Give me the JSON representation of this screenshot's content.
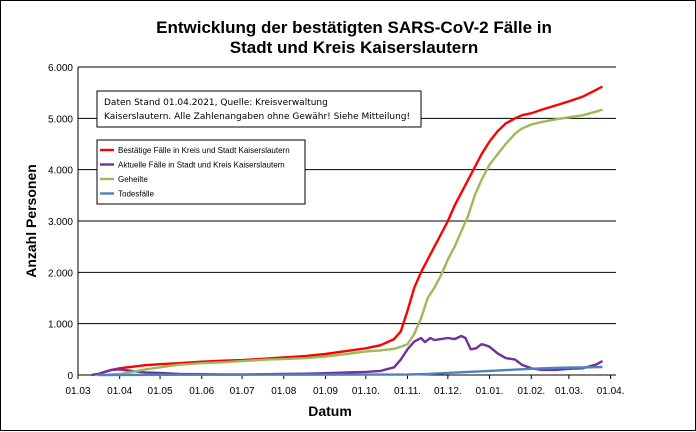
{
  "chart_data": {
    "type": "line",
    "title_line1": "Entwicklung der bestätigten SARS-CoV-2 Fälle in",
    "title_line2": "Stadt und Kreis Kaiserslautern",
    "xlabel": "Datum",
    "ylabel": "Anzahl Personen",
    "ylim": [
      0,
      6000
    ],
    "yticks": [
      {
        "value": 0,
        "label": "0"
      },
      {
        "value": 1000,
        "label": "1.000"
      },
      {
        "value": 2000,
        "label": "2.000"
      },
      {
        "value": 3000,
        "label": "3.000"
      },
      {
        "value": 4000,
        "label": "4.000"
      },
      {
        "value": 5000,
        "label": "5.000"
      },
      {
        "value": 6000,
        "label": "6.000"
      }
    ],
    "xlim": [
      0,
      394
    ],
    "xticks": [
      {
        "value": 0,
        "label": "01.03"
      },
      {
        "value": 31,
        "label": "01.04"
      },
      {
        "value": 61,
        "label": "01.05"
      },
      {
        "value": 92,
        "label": "01.06"
      },
      {
        "value": 122,
        "label": "01.07"
      },
      {
        "value": 153,
        "label": "01.08"
      },
      {
        "value": 184,
        "label": "01.09"
      },
      {
        "value": 214,
        "label": "01.10."
      },
      {
        "value": 245,
        "label": "01.11."
      },
      {
        "value": 275,
        "label": "01.12."
      },
      {
        "value": 306,
        "label": "01.01."
      },
      {
        "value": 337,
        "label": "01.02."
      },
      {
        "value": 365,
        "label": "01.03."
      },
      {
        "value": 396,
        "label": "01.04."
      }
    ],
    "grid": true,
    "note_line1": "Daten Stand 01.04.2021, Quelle: Kreisverwaltung",
    "note_line2": "Kaiserslautern. Alle Zahlenangaben ohne Gewähr! Siehe Mitteilung!",
    "series": [
      {
        "name": "Bestätige Fälle in Kreis und Stadt Kaiserslautern",
        "color": "#ff0000",
        "points": [
          [
            10,
            0
          ],
          [
            15,
            20
          ],
          [
            20,
            60
          ],
          [
            25,
            100
          ],
          [
            31,
            130
          ],
          [
            40,
            160
          ],
          [
            50,
            190
          ],
          [
            61,
            210
          ],
          [
            75,
            230
          ],
          [
            92,
            260
          ],
          [
            110,
            280
          ],
          [
            122,
            290
          ],
          [
            140,
            320
          ],
          [
            153,
            340
          ],
          [
            170,
            370
          ],
          [
            184,
            410
          ],
          [
            200,
            470
          ],
          [
            214,
            520
          ],
          [
            225,
            580
          ],
          [
            235,
            700
          ],
          [
            240,
            850
          ],
          [
            245,
            1250
          ],
          [
            250,
            1700
          ],
          [
            255,
            2000
          ],
          [
            260,
            2250
          ],
          [
            265,
            2500
          ],
          [
            270,
            2750
          ],
          [
            275,
            3000
          ],
          [
            280,
            3300
          ],
          [
            285,
            3550
          ],
          [
            290,
            3800
          ],
          [
            295,
            4050
          ],
          [
            300,
            4300
          ],
          [
            306,
            4550
          ],
          [
            312,
            4750
          ],
          [
            318,
            4900
          ],
          [
            325,
            5000
          ],
          [
            330,
            5060
          ],
          [
            337,
            5100
          ],
          [
            345,
            5170
          ],
          [
            355,
            5250
          ],
          [
            365,
            5330
          ],
          [
            375,
            5420
          ],
          [
            385,
            5550
          ],
          [
            390,
            5620
          ]
        ]
      },
      {
        "name": "Aktuelle Fälle in Stadt und Kreis Kaiserslautern",
        "color": "#7030a0",
        "points": [
          [
            10,
            0
          ],
          [
            15,
            20
          ],
          [
            20,
            60
          ],
          [
            25,
            100
          ],
          [
            31,
            110
          ],
          [
            40,
            80
          ],
          [
            50,
            50
          ],
          [
            61,
            40
          ],
          [
            75,
            20
          ],
          [
            92,
            15
          ],
          [
            110,
            10
          ],
          [
            122,
            10
          ],
          [
            140,
            15
          ],
          [
            153,
            20
          ],
          [
            170,
            25
          ],
          [
            184,
            35
          ],
          [
            200,
            50
          ],
          [
            214,
            60
          ],
          [
            225,
            80
          ],
          [
            235,
            150
          ],
          [
            240,
            300
          ],
          [
            245,
            500
          ],
          [
            250,
            650
          ],
          [
            255,
            720
          ],
          [
            258,
            640
          ],
          [
            262,
            720
          ],
          [
            265,
            680
          ],
          [
            270,
            700
          ],
          [
            275,
            720
          ],
          [
            280,
            700
          ],
          [
            285,
            760
          ],
          [
            288,
            720
          ],
          [
            292,
            500
          ],
          [
            296,
            520
          ],
          [
            300,
            600
          ],
          [
            303,
            580
          ],
          [
            306,
            550
          ],
          [
            312,
            420
          ],
          [
            318,
            330
          ],
          [
            325,
            300
          ],
          [
            330,
            200
          ],
          [
            337,
            130
          ],
          [
            345,
            100
          ],
          [
            355,
            100
          ],
          [
            365,
            120
          ],
          [
            375,
            130
          ],
          [
            385,
            200
          ],
          [
            390,
            270
          ]
        ]
      },
      {
        "name": "Geheilte",
        "color": "#9bbb59",
        "points": [
          [
            20,
            0
          ],
          [
            25,
            10
          ],
          [
            31,
            20
          ],
          [
            40,
            60
          ],
          [
            50,
            110
          ],
          [
            61,
            150
          ],
          [
            75,
            200
          ],
          [
            92,
            230
          ],
          [
            110,
            250
          ],
          [
            122,
            270
          ],
          [
            140,
            300
          ],
          [
            153,
            310
          ],
          [
            170,
            330
          ],
          [
            184,
            360
          ],
          [
            200,
            410
          ],
          [
            214,
            460
          ],
          [
            225,
            480
          ],
          [
            235,
            510
          ],
          [
            240,
            550
          ],
          [
            245,
            600
          ],
          [
            250,
            800
          ],
          [
            255,
            1100
          ],
          [
            260,
            1500
          ],
          [
            265,
            1700
          ],
          [
            270,
            1950
          ],
          [
            275,
            2250
          ],
          [
            280,
            2500
          ],
          [
            285,
            2800
          ],
          [
            290,
            3100
          ],
          [
            295,
            3500
          ],
          [
            300,
            3800
          ],
          [
            306,
            4100
          ],
          [
            312,
            4300
          ],
          [
            318,
            4500
          ],
          [
            325,
            4700
          ],
          [
            330,
            4800
          ],
          [
            337,
            4880
          ],
          [
            345,
            4930
          ],
          [
            355,
            4980
          ],
          [
            365,
            5020
          ],
          [
            375,
            5060
          ],
          [
            385,
            5130
          ],
          [
            390,
            5170
          ]
        ]
      },
      {
        "name": "Todesfälle",
        "color": "#4f81bd",
        "points": [
          [
            15,
            0
          ],
          [
            61,
            3
          ],
          [
            122,
            5
          ],
          [
            184,
            6
          ],
          [
            214,
            7
          ],
          [
            245,
            10
          ],
          [
            260,
            20
          ],
          [
            275,
            40
          ],
          [
            290,
            60
          ],
          [
            306,
            80
          ],
          [
            320,
            100
          ],
          [
            337,
            120
          ],
          [
            350,
            135
          ],
          [
            365,
            145
          ],
          [
            380,
            150
          ],
          [
            390,
            155
          ]
        ]
      }
    ]
  }
}
